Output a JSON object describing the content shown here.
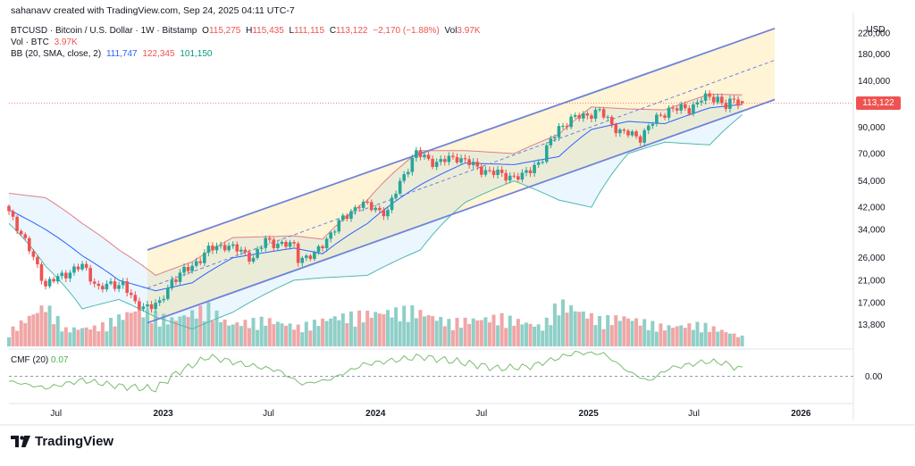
{
  "credit": "sahanavv created with TradingView.com, Sep 24, 2025 04:11 UTC-7",
  "legend": {
    "symbol": "BTCUSD · Bitcoin / U.S. Dollar · 1W · Bitstamp",
    "open_label": "O",
    "open": "115,275",
    "high_label": "H",
    "high": "115,435",
    "low_label": "L",
    "low": "111,115",
    "close_label": "C",
    "close": "113,122",
    "change": "−2,170 (−1.88%)",
    "vol_label": "Vol",
    "vol": "3.97K",
    "vol_btc_label": "Vol · BTC",
    "vol_btc": "3.97K",
    "bb_label": "BB (20, SMA, close, 2)",
    "bb_basis": "111,747",
    "bb_upper": "122,345",
    "bb_lower": "101,150"
  },
  "cmf": {
    "label": "CMF (20)",
    "value": "0.07"
  },
  "price_tag": "113,122",
  "currency": "USD",
  "brand": "TradingView",
  "colors": {
    "up": "#26a69a",
    "down": "#ef5350",
    "upper_band": "#e07f86",
    "basis": "#2962ff",
    "lower_band": "#4fb9b0",
    "channel": "#6e83d8",
    "channel_fill": "#fff4d6",
    "cmf_line": "#7dbb72",
    "vol_up": "#8fcfc7",
    "vol_down": "#f0a6a6",
    "price_line": "#ef5350"
  },
  "chart_data": {
    "type": "candlestick",
    "title": "BTCUSD · Bitcoin / U.S. Dollar · 1W · Bitstamp",
    "y_scale": "log",
    "ylim": [
      11200,
      250000
    ],
    "y_ticks": [
      {
        "v": 220000,
        "label": "220,000"
      },
      {
        "v": 180000,
        "label": "180,000"
      },
      {
        "v": 140000,
        "label": "140,000"
      },
      {
        "v": 90000,
        "label": "90,000"
      },
      {
        "v": 70000,
        "label": "70,000"
      },
      {
        "v": 54000,
        "label": "54,000"
      },
      {
        "v": 42000,
        "label": "42,000"
      },
      {
        "v": 34000,
        "label": "34,000"
      },
      {
        "v": 26000,
        "label": "26,000"
      },
      {
        "v": 21000,
        "label": "21,000"
      },
      {
        "v": 17000,
        "label": "17,000"
      },
      {
        "v": 13800,
        "label": "13,800"
      }
    ],
    "x_ticks": [
      {
        "date": "2022-07-01",
        "label": "Jul",
        "bold": false
      },
      {
        "date": "2023-01-01",
        "label": "2023",
        "bold": true
      },
      {
        "date": "2023-07-01",
        "label": "Jul",
        "bold": false
      },
      {
        "date": "2024-01-01",
        "label": "2024",
        "bold": true
      },
      {
        "date": "2024-07-01",
        "label": "Jul",
        "bold": false
      },
      {
        "date": "2025-01-01",
        "label": "2025",
        "bold": true
      },
      {
        "date": "2025-07-01",
        "label": "Jul",
        "bold": false
      },
      {
        "date": "2026-01-01",
        "label": "2026",
        "bold": true
      }
    ],
    "xlim": [
      "2022-04-11",
      "2026-04-01"
    ],
    "close_anchors": [
      [
        "2022-04-11",
        40500
      ],
      [
        "2022-05-09",
        30000
      ],
      [
        "2022-06-13",
        20000
      ],
      [
        "2022-07-18",
        22500
      ],
      [
        "2022-08-15",
        24000
      ],
      [
        "2022-09-12",
        19500
      ],
      [
        "2022-10-24",
        20500
      ],
      [
        "2022-11-14",
        16500
      ],
      [
        "2022-12-26",
        16600
      ],
      [
        "2023-01-16",
        21000
      ],
      [
        "2023-02-20",
        24000
      ],
      [
        "2023-03-20",
        28000
      ],
      [
        "2023-04-17",
        29500
      ],
      [
        "2023-06-05",
        26000
      ],
      [
        "2023-06-26",
        30500
      ],
      [
        "2023-08-14",
        29000
      ],
      [
        "2023-08-21",
        26000
      ],
      [
        "2023-09-18",
        26500
      ],
      [
        "2023-10-23",
        34500
      ],
      [
        "2023-12-04",
        43500
      ],
      [
        "2024-01-22",
        40000
      ],
      [
        "2024-02-26",
        62000
      ],
      [
        "2024-03-11",
        70000
      ],
      [
        "2024-04-15",
        64000
      ],
      [
        "2024-05-20",
        68000
      ],
      [
        "2024-06-24",
        61000
      ],
      [
        "2024-08-05",
        57000
      ],
      [
        "2024-09-09",
        56000
      ],
      [
        "2024-10-14",
        67000
      ],
      [
        "2024-11-11",
        90000
      ],
      [
        "2024-12-16",
        100000
      ],
      [
        "2025-01-20",
        104000
      ],
      [
        "2025-02-24",
        86000
      ],
      [
        "2025-03-31",
        82000
      ],
      [
        "2025-04-21",
        94000
      ],
      [
        "2025-05-19",
        107000
      ],
      [
        "2025-06-23",
        107000
      ],
      [
        "2025-07-14",
        118000
      ],
      [
        "2025-08-11",
        119000
      ],
      [
        "2025-08-25",
        110000
      ],
      [
        "2025-09-08",
        115000
      ],
      [
        "2025-09-22",
        113122
      ]
    ],
    "last_candle": {
      "date": "2025-09-22",
      "open": 115275,
      "high": 115435,
      "low": 111115,
      "close": 113122,
      "volume": 3970
    },
    "bollinger": {
      "period": 20,
      "basis_last": 111747,
      "upper_last": 122345,
      "lower_last": 101150,
      "upper_anchors": [
        [
          "2022-04-11",
          48000
        ],
        [
          "2022-06-13",
          46000
        ],
        [
          "2022-08-15",
          36000
        ],
        [
          "2022-10-17",
          28000
        ],
        [
          "2022-12-19",
          22000
        ],
        [
          "2023-02-20",
          25000
        ],
        [
          "2023-05-01",
          31500
        ],
        [
          "2023-08-14",
          32000
        ],
        [
          "2023-10-02",
          31000
        ],
        [
          "2023-12-18",
          45000
        ],
        [
          "2024-03-18",
          72000
        ],
        [
          "2024-06-03",
          72000
        ],
        [
          "2024-08-26",
          70000
        ],
        [
          "2024-11-11",
          84000
        ],
        [
          "2025-01-06",
          109000
        ],
        [
          "2025-03-10",
          107000
        ],
        [
          "2025-05-12",
          106000
        ],
        [
          "2025-07-28",
          123000
        ],
        [
          "2025-09-22",
          122345
        ]
      ],
      "basis_anchors": [
        [
          "2022-04-11",
          41000
        ],
        [
          "2022-06-13",
          34000
        ],
        [
          "2022-08-15",
          26500
        ],
        [
          "2022-10-17",
          21000
        ],
        [
          "2022-12-19",
          19000
        ],
        [
          "2023-02-20",
          20500
        ],
        [
          "2023-05-01",
          26000
        ],
        [
          "2023-08-14",
          28500
        ],
        [
          "2023-10-02",
          27000
        ],
        [
          "2023-12-18",
          36000
        ],
        [
          "2024-03-18",
          52000
        ],
        [
          "2024-06-03",
          64000
        ],
        [
          "2024-08-26",
          63000
        ],
        [
          "2024-11-11",
          68000
        ],
        [
          "2025-01-06",
          88000
        ],
        [
          "2025-03-10",
          95000
        ],
        [
          "2025-05-12",
          93000
        ],
        [
          "2025-07-28",
          108000
        ],
        [
          "2025-09-22",
          111747
        ]
      ],
      "lower_anchors": [
        [
          "2022-04-11",
          36000
        ],
        [
          "2022-06-13",
          24000
        ],
        [
          "2022-08-15",
          16000
        ],
        [
          "2022-10-17",
          17500
        ],
        [
          "2022-12-19",
          14800
        ],
        [
          "2023-02-20",
          13200
        ],
        [
          "2023-05-01",
          15500
        ],
        [
          "2023-08-14",
          21000
        ],
        [
          "2023-10-02",
          21500
        ],
        [
          "2023-12-18",
          22000
        ],
        [
          "2024-03-18",
          28000
        ],
        [
          "2024-06-03",
          44000
        ],
        [
          "2024-08-26",
          54000
        ],
        [
          "2024-11-11",
          45000
        ],
        [
          "2025-01-06",
          42000
        ],
        [
          "2025-03-10",
          70000
        ],
        [
          "2025-05-12",
          78000
        ],
        [
          "2025-07-28",
          76000
        ],
        [
          "2025-09-22",
          101150
        ]
      ]
    },
    "channel": {
      "upper": [
        [
          "2022-12-05",
          28000
        ],
        [
          "2025-11-17",
          230000
        ]
      ],
      "middle": [
        [
          "2022-12-05",
          19500
        ],
        [
          "2025-11-17",
          170000
        ]
      ],
      "lower": [
        [
          "2022-12-05",
          14000
        ],
        [
          "2025-11-17",
          117000
        ]
      ]
    },
    "volume_anchors": [
      [
        "2022-04-11",
        0.3
      ],
      [
        "2022-06-13",
        0.85
      ],
      [
        "2022-07-18",
        0.35
      ],
      [
        "2022-09-12",
        0.4
      ],
      [
        "2022-11-14",
        0.75
      ],
      [
        "2023-01-16",
        0.55
      ],
      [
        "2023-03-20",
        0.8
      ],
      [
        "2023-04-24",
        0.45
      ],
      [
        "2023-06-26",
        0.55
      ],
      [
        "2023-08-21",
        0.4
      ],
      [
        "2023-10-23",
        0.6
      ],
      [
        "2023-12-04",
        0.65
      ],
      [
        "2024-03-04",
        0.75
      ],
      [
        "2024-05-06",
        0.5
      ],
      [
        "2024-08-05",
        0.6
      ],
      [
        "2024-10-14",
        0.4
      ],
      [
        "2024-11-11",
        0.9
      ],
      [
        "2025-01-20",
        0.55
      ],
      [
        "2025-03-03",
        0.6
      ],
      [
        "2025-05-12",
        0.4
      ],
      [
        "2025-07-14",
        0.45
      ],
      [
        "2025-09-22",
        0.2
      ]
    ],
    "cmf_series": [
      [
        "2022-04-11",
        -0.05
      ],
      [
        "2022-06-13",
        -0.12
      ],
      [
        "2022-08-15",
        -0.04
      ],
      [
        "2022-10-17",
        -0.1
      ],
      [
        "2022-12-19",
        -0.13
      ],
      [
        "2023-01-23",
        0.03
      ],
      [
        "2023-03-20",
        0.2
      ],
      [
        "2023-05-22",
        0.12
      ],
      [
        "2023-07-17",
        0.06
      ],
      [
        "2023-08-28",
        -0.08
      ],
      [
        "2023-10-16",
        -0.03
      ],
      [
        "2023-12-11",
        0.12
      ],
      [
        "2024-03-18",
        0.2
      ],
      [
        "2024-05-20",
        0.15
      ],
      [
        "2024-07-29",
        0.08
      ],
      [
        "2024-09-23",
        0.1
      ],
      [
        "2024-12-09",
        0.24
      ],
      [
        "2025-01-27",
        0.23
      ],
      [
        "2025-03-10",
        0.05
      ],
      [
        "2025-04-14",
        -0.05
      ],
      [
        "2025-05-19",
        0.08
      ],
      [
        "2025-07-21",
        0.15
      ],
      [
        "2025-08-18",
        0.14
      ],
      [
        "2025-09-22",
        0.07
      ]
    ],
    "cmf_ticks": [
      {
        "v": 0,
        "label": "0.00"
      }
    ]
  }
}
